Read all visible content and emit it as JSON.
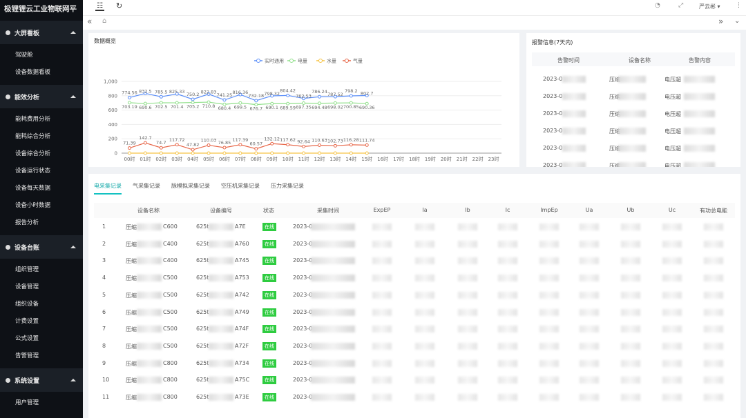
{
  "sidebar": {
    "title": "极锂锂云工业物联网平台",
    "sections": [
      {
        "label": "大屏看板",
        "items": [
          "驾驶舱",
          "设备数据看板"
        ]
      },
      {
        "label": "能效分析",
        "items": [
          "能耗费用分析",
          "能耗综合分析",
          "设备综合分析",
          "设备运行状态",
          "设备每天数据",
          "设备小时数据",
          "报告分析"
        ]
      },
      {
        "label": "设备台账",
        "items": [
          "组织管理",
          "设备管理",
          "组织设备",
          "计费设置",
          "公式设置",
          "告警管理"
        ]
      },
      {
        "label": "系统设置",
        "items": [
          "用户管理"
        ]
      }
    ]
  },
  "header": {
    "user": "严云彬"
  },
  "chart_data": {
    "type": "line",
    "title": "数据概览",
    "categories": [
      "00时",
      "01时",
      "02时",
      "03时",
      "04时",
      "05时",
      "06时",
      "07时",
      "08时",
      "09时",
      "10时",
      "11时",
      "12时",
      "13时",
      "14时",
      "15时",
      "16时",
      "17时",
      "18时",
      "19时",
      "20时",
      "21时",
      "22时",
      "23时"
    ],
    "series": [
      {
        "name": "实时通用",
        "color": "#5b8ff9",
        "values": [
          774.56,
          832.5,
          785.5,
          825.33,
          750.2,
          822.83,
          741.25,
          816.36,
          732.18,
          798.32,
          804.42,
          762.53,
          786.24,
          787.52,
          798.2,
          802.7,
          null,
          null,
          null,
          null,
          null,
          null,
          null,
          null
        ]
      },
      {
        "name": "电量",
        "color": "#91e08b",
        "values": [
          703.19,
          690.6,
          702.5,
          701.4,
          705.2,
          710.8,
          680.4,
          699.5,
          676.7,
          690.1,
          689.59,
          697.35,
          694.48,
          698.02,
          700.85,
          690.36,
          null,
          null,
          null,
          null,
          null,
          null,
          null,
          null
        ]
      },
      {
        "name": "水量",
        "color": "#f6c343",
        "values": [
          0,
          0,
          0,
          0,
          0,
          0,
          0,
          0,
          0,
          0,
          0,
          0,
          0,
          0,
          0,
          0,
          null,
          null,
          null,
          null,
          null,
          null,
          null,
          null
        ]
      },
      {
        "name": "气量",
        "color": "#e8684a",
        "values": [
          71.39,
          142.7,
          74.7,
          117.72,
          47.82,
          110.03,
          76.85,
          117.39,
          60.57,
          132.12,
          117.62,
          92.64,
          110.63,
          102.73,
          116.28,
          111.74,
          null,
          null,
          null,
          null,
          null,
          null,
          null,
          null
        ]
      }
    ],
    "ylim": [
      0,
      1000
    ],
    "yticks": [
      0,
      200,
      400,
      600,
      800,
      {
        "value": 1000,
        "label": "1,000"
      }
    ],
    "grid": true
  },
  "alarms": {
    "title": "报警信息(7天内)",
    "columns": [
      "告警时间",
      "设备名称",
      "告警内容"
    ],
    "rows": [
      [
        "2023-0",
        "压缩",
        "电压超"
      ],
      [
        "2023-0",
        "压缩",
        "电压超"
      ],
      [
        "2023-0",
        "压缩",
        "电压超"
      ],
      [
        "2023-0",
        "压缩",
        "电压超"
      ],
      [
        "2023-0",
        "压缩",
        "电压超"
      ],
      [
        "2023-0",
        "压缩",
        "电压超"
      ]
    ]
  },
  "tabs": [
    "电采集记录",
    "气采集记录",
    "脉模拟采集记录",
    "空压机采集记录",
    "压力采集记录"
  ],
  "table": {
    "columns": [
      "设备名称",
      "设备编号",
      "状态",
      "采集时间",
      "ExpEP",
      "Ia",
      "Ib",
      "Ic",
      "ImpEp",
      "Ua",
      "Ub",
      "Uc",
      "有功总电能"
    ],
    "rows": [
      [
        "1",
        "压缩",
        "C600",
        "625t",
        "A7E",
        "在线",
        "2023-0"
      ],
      [
        "2",
        "压缩",
        "C400",
        "625t",
        "A760",
        "在线",
        "2023-0"
      ],
      [
        "3",
        "压缩",
        "C400",
        "625t",
        "A745",
        "在线",
        "2023-0"
      ],
      [
        "4",
        "压缩",
        "C500",
        "625t",
        "A753",
        "在线",
        "2023-0"
      ],
      [
        "5",
        "压缩",
        "C500",
        "625t",
        "A742",
        "在线",
        "2023-0"
      ],
      [
        "6",
        "压缩",
        "C500",
        "625t",
        "A749",
        "在线",
        "2023-0"
      ],
      [
        "7",
        "压缩",
        "C500",
        "625t",
        "A74F",
        "在线",
        "2023-0"
      ],
      [
        "8",
        "压缩",
        "C500",
        "625t",
        "A72F",
        "在线",
        "2023-0"
      ],
      [
        "9",
        "压缩",
        "C800",
        "625t",
        "A734",
        "在线",
        "2023-0"
      ],
      [
        "10",
        "压缩",
        "C800",
        "625t",
        "A75C",
        "在线",
        "2023-0"
      ],
      [
        "11",
        "压缩",
        "C800",
        "625t",
        "A73E",
        "在线",
        "2023-0"
      ]
    ]
  }
}
